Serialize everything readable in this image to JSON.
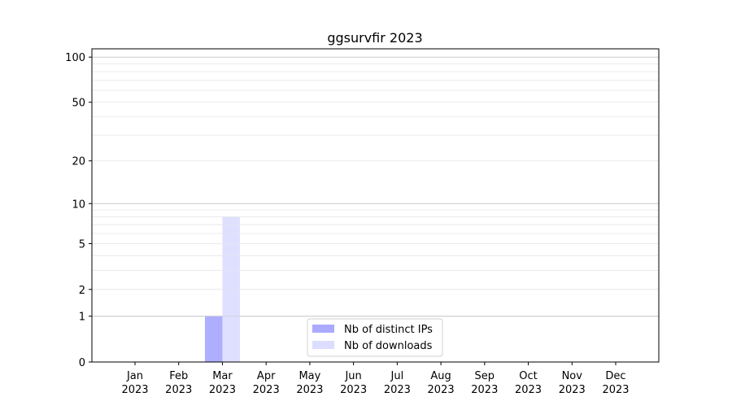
{
  "chart_data": {
    "type": "bar",
    "title": "ggsurvfir 2023",
    "xlabel": "",
    "ylabel": "",
    "yscale": "symlog",
    "ylim": [
      0,
      113
    ],
    "yticks": [
      0,
      1,
      2,
      5,
      10,
      20,
      50,
      100
    ],
    "ytick_labels": [
      "0",
      "1",
      "2",
      "5",
      "10",
      "20",
      "50",
      "100"
    ],
    "grid": true,
    "legend_position": "bottom-center",
    "categories": [
      [
        "Jan",
        "2023"
      ],
      [
        "Feb",
        "2023"
      ],
      [
        "Mar",
        "2023"
      ],
      [
        "Apr",
        "2023"
      ],
      [
        "May",
        "2023"
      ],
      [
        "Jun",
        "2023"
      ],
      [
        "Jul",
        "2023"
      ],
      [
        "Aug",
        "2023"
      ],
      [
        "Sep",
        "2023"
      ],
      [
        "Oct",
        "2023"
      ],
      [
        "Nov",
        "2023"
      ],
      [
        "Dec",
        "2023"
      ]
    ],
    "series": [
      {
        "name": "Nb of distinct IPs",
        "color": "#aaaaff",
        "values": [
          0,
          0,
          1,
          0,
          0,
          0,
          0,
          0,
          0,
          0,
          0,
          0
        ]
      },
      {
        "name": "Nb of downloads",
        "color": "#ddddff",
        "values": [
          0,
          0,
          8,
          0,
          0,
          0,
          0,
          0,
          0,
          0,
          0,
          0
        ]
      }
    ]
  }
}
